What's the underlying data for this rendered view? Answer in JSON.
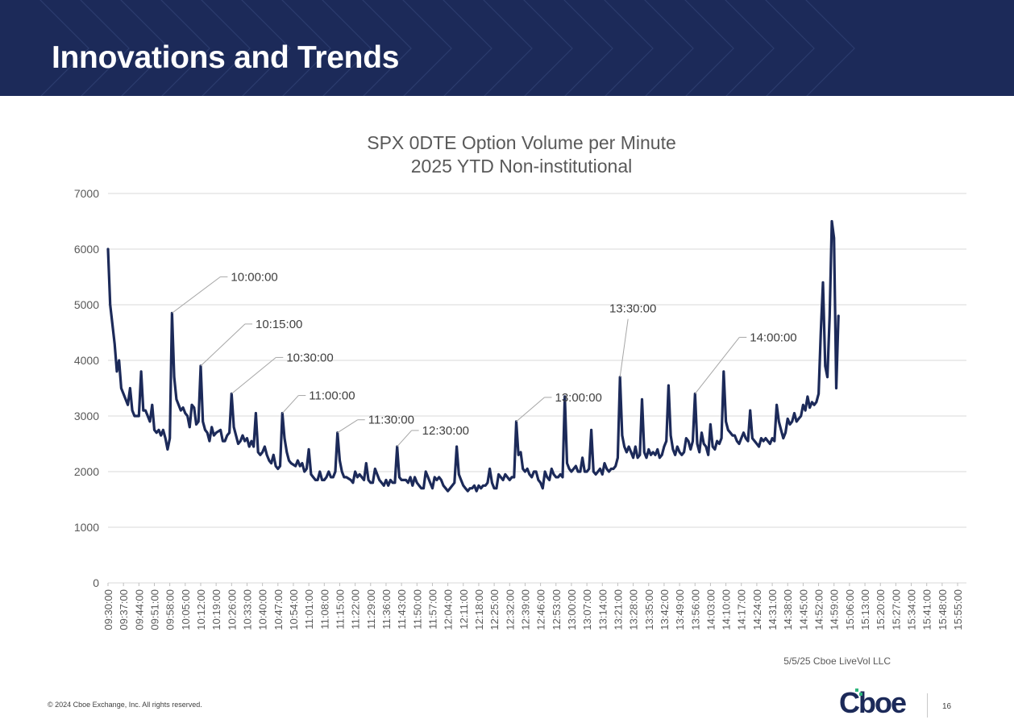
{
  "header": {
    "title": "Innovations and Trends"
  },
  "footer": {
    "source": "5/5/25 Cboe LiveVol LLC",
    "copyright": "© 2024 Cboe Exchange, Inc. All rights reserved.",
    "logo_text": "Cboe",
    "page_number": "16"
  },
  "colors": {
    "banner": "#1c2a59",
    "series": "#1c2a59",
    "grid": "#d9d9d9",
    "annotation_line": "#a6a6a6"
  },
  "chart_data": {
    "type": "line",
    "title": "SPX 0DTE Option Volume per Minute",
    "subtitle": "2025 YTD Non-institutional",
    "xlabel": "",
    "ylabel": "",
    "ylim": [
      0,
      7000
    ],
    "yticks": [
      0,
      1000,
      2000,
      3000,
      4000,
      5000,
      6000,
      7000
    ],
    "grid": true,
    "legend": "none",
    "x_start": "09:30:00",
    "x_end": "15:59:00",
    "x_step_minutes": 1,
    "tick_labels": [
      "09:30:00",
      "09:37:00",
      "09:44:00",
      "09:51:00",
      "09:58:00",
      "10:05:00",
      "10:12:00",
      "10:19:00",
      "10:26:00",
      "10:33:00",
      "10:40:00",
      "10:47:00",
      "10:54:00",
      "11:01:00",
      "11:08:00",
      "11:15:00",
      "11:22:00",
      "11:29:00",
      "11:36:00",
      "11:43:00",
      "11:50:00",
      "11:57:00",
      "12:04:00",
      "12:11:00",
      "12:18:00",
      "12:25:00",
      "12:32:00",
      "12:39:00",
      "12:46:00",
      "12:53:00",
      "13:00:00",
      "13:07:00",
      "13:14:00",
      "13:21:00",
      "13:28:00",
      "13:35:00",
      "13:42:00",
      "13:49:00",
      "13:56:00",
      "14:03:00",
      "14:10:00",
      "14:17:00",
      "14:24:00",
      "14:31:00",
      "14:38:00",
      "14:45:00",
      "14:52:00",
      "14:59:00",
      "15:06:00",
      "15:13:00",
      "15:20:00",
      "15:27:00",
      "15:34:00",
      "15:41:00",
      "15:48:00",
      "15:55:00"
    ],
    "anchors": [
      [
        "09:30",
        6000
      ],
      [
        "09:31",
        5000
      ],
      [
        "09:33",
        4300
      ],
      [
        "09:34",
        3800
      ],
      [
        "09:35",
        4000
      ],
      [
        "09:36",
        3500
      ],
      [
        "09:38",
        3300
      ],
      [
        "09:39",
        3200
      ],
      [
        "09:40",
        3500
      ],
      [
        "09:41",
        3100
      ],
      [
        "09:42",
        3000
      ],
      [
        "09:44",
        3000
      ],
      [
        "09:45",
        3800
      ],
      [
        "09:46",
        3100
      ],
      [
        "09:47",
        3100
      ],
      [
        "09:48",
        3000
      ],
      [
        "09:49",
        2900
      ],
      [
        "09:50",
        3200
      ],
      [
        "09:51",
        2750
      ],
      [
        "09:52",
        2700
      ],
      [
        "09:53",
        2750
      ],
      [
        "09:54",
        2650
      ],
      [
        "09:55",
        2750
      ],
      [
        "09:56",
        2600
      ],
      [
        "09:57",
        2400
      ],
      [
        "09:58",
        2600
      ],
      [
        "09:59",
        4850
      ],
      [
        "10:00",
        3700
      ],
      [
        "10:01",
        3300
      ],
      [
        "10:02",
        3200
      ],
      [
        "10:03",
        3100
      ],
      [
        "10:04",
        3150
      ],
      [
        "10:05",
        3050
      ],
      [
        "10:06",
        3000
      ],
      [
        "10:07",
        2800
      ],
      [
        "10:08",
        3200
      ],
      [
        "10:09",
        3150
      ],
      [
        "10:10",
        2850
      ],
      [
        "10:11",
        2900
      ],
      [
        "10:12",
        3900
      ],
      [
        "10:13",
        2900
      ],
      [
        "10:14",
        2750
      ],
      [
        "10:15",
        2700
      ],
      [
        "10:16",
        2550
      ],
      [
        "10:17",
        2800
      ],
      [
        "10:18",
        2650
      ],
      [
        "10:19",
        2700
      ],
      [
        "10:21",
        2750
      ],
      [
        "10:22",
        2550
      ],
      [
        "10:23",
        2550
      ],
      [
        "10:24",
        2650
      ],
      [
        "10:25",
        2700
      ],
      [
        "10:26",
        3400
      ],
      [
        "10:27",
        2800
      ],
      [
        "10:28",
        2650
      ],
      [
        "10:29",
        2500
      ],
      [
        "10:30",
        2550
      ],
      [
        "10:31",
        2650
      ],
      [
        "10:32",
        2550
      ],
      [
        "10:33",
        2600
      ],
      [
        "10:34",
        2450
      ],
      [
        "10:35",
        2550
      ],
      [
        "10:36",
        2450
      ],
      [
        "10:37",
        3050
      ],
      [
        "10:38",
        2350
      ],
      [
        "10:39",
        2300
      ],
      [
        "10:40",
        2350
      ],
      [
        "10:41",
        2450
      ],
      [
        "10:42",
        2300
      ],
      [
        "10:43",
        2200
      ],
      [
        "10:44",
        2150
      ],
      [
        "10:45",
        2300
      ],
      [
        "10:46",
        2100
      ],
      [
        "10:47",
        2050
      ],
      [
        "10:48",
        2100
      ],
      [
        "10:49",
        3050
      ],
      [
        "10:50",
        2600
      ],
      [
        "10:51",
        2350
      ],
      [
        "10:52",
        2200
      ],
      [
        "10:53",
        2150
      ],
      [
        "10:55",
        2100
      ],
      [
        "10:56",
        2200
      ],
      [
        "10:57",
        2100
      ],
      [
        "10:58",
        2150
      ],
      [
        "10:59",
        2000
      ],
      [
        "11:00",
        2050
      ],
      [
        "11:01",
        2400
      ],
      [
        "11:02",
        1950
      ],
      [
        "11:03",
        1900
      ],
      [
        "11:04",
        1850
      ],
      [
        "11:05",
        1850
      ],
      [
        "11:06",
        2000
      ],
      [
        "11:07",
        1850
      ],
      [
        "11:08",
        1850
      ],
      [
        "11:09",
        1900
      ],
      [
        "11:10",
        2000
      ],
      [
        "11:11",
        1900
      ],
      [
        "11:12",
        1900
      ],
      [
        "11:13",
        2000
      ],
      [
        "11:14",
        2700
      ],
      [
        "11:15",
        2200
      ],
      [
        "11:16",
        2000
      ],
      [
        "11:17",
        1900
      ],
      [
        "11:18",
        1900
      ],
      [
        "11:20",
        1850
      ],
      [
        "11:21",
        1800
      ],
      [
        "11:22",
        2000
      ],
      [
        "11:23",
        1900
      ],
      [
        "11:24",
        1950
      ],
      [
        "11:25",
        1900
      ],
      [
        "11:26",
        1850
      ],
      [
        "11:27",
        2150
      ],
      [
        "11:28",
        1850
      ],
      [
        "11:29",
        1800
      ],
      [
        "11:30",
        1800
      ],
      [
        "11:31",
        2050
      ],
      [
        "11:32",
        1950
      ],
      [
        "11:33",
        1850
      ],
      [
        "11:34",
        1800
      ],
      [
        "11:35",
        1750
      ],
      [
        "11:36",
        1850
      ],
      [
        "11:37",
        1750
      ],
      [
        "11:38",
        1850
      ],
      [
        "11:39",
        1800
      ],
      [
        "11:40",
        1800
      ],
      [
        "11:41",
        2450
      ],
      [
        "11:42",
        1900
      ],
      [
        "11:43",
        1850
      ],
      [
        "11:45",
        1850
      ],
      [
        "11:46",
        1800
      ],
      [
        "11:47",
        1900
      ],
      [
        "11:48",
        1750
      ],
      [
        "11:49",
        1900
      ],
      [
        "11:50",
        1800
      ],
      [
        "11:51",
        1750
      ],
      [
        "11:52",
        1700
      ],
      [
        "11:53",
        1700
      ],
      [
        "11:54",
        2000
      ],
      [
        "11:55",
        1900
      ],
      [
        "11:56",
        1800
      ],
      [
        "11:57",
        1700
      ],
      [
        "11:58",
        1900
      ],
      [
        "11:59",
        1850
      ],
      [
        "12:00",
        1900
      ],
      [
        "12:01",
        1850
      ],
      [
        "12:02",
        1750
      ],
      [
        "12:03",
        1700
      ],
      [
        "12:04",
        1650
      ],
      [
        "12:05",
        1700
      ],
      [
        "12:06",
        1750
      ],
      [
        "12:07",
        1800
      ],
      [
        "12:08",
        2450
      ],
      [
        "12:09",
        1950
      ],
      [
        "12:10",
        1850
      ],
      [
        "12:11",
        1750
      ],
      [
        "12:12",
        1700
      ],
      [
        "12:13",
        1650
      ],
      [
        "12:14",
        1700
      ],
      [
        "12:15",
        1700
      ],
      [
        "12:16",
        1750
      ],
      [
        "12:17",
        1650
      ],
      [
        "12:18",
        1750
      ],
      [
        "12:19",
        1700
      ],
      [
        "12:20",
        1750
      ],
      [
        "12:21",
        1750
      ],
      [
        "12:22",
        1800
      ],
      [
        "12:23",
        2050
      ],
      [
        "12:24",
        1800
      ],
      [
        "12:25",
        1700
      ],
      [
        "12:26",
        1700
      ],
      [
        "12:27",
        1950
      ],
      [
        "12:28",
        1900
      ],
      [
        "12:29",
        1850
      ],
      [
        "12:30",
        1950
      ],
      [
        "12:31",
        1900
      ],
      [
        "12:32",
        1850
      ],
      [
        "12:33",
        1900
      ],
      [
        "12:34",
        1900
      ],
      [
        "12:35",
        2900
      ],
      [
        "12:36",
        2300
      ],
      [
        "12:37",
        2350
      ],
      [
        "12:38",
        2050
      ],
      [
        "12:39",
        2000
      ],
      [
        "12:40",
        2050
      ],
      [
        "12:41",
        1950
      ],
      [
        "12:42",
        1900
      ],
      [
        "12:43",
        2000
      ],
      [
        "12:44",
        2000
      ],
      [
        "12:45",
        1850
      ],
      [
        "12:46",
        1800
      ],
      [
        "12:47",
        1700
      ],
      [
        "12:48",
        2000
      ],
      [
        "12:49",
        1900
      ],
      [
        "12:50",
        1850
      ],
      [
        "12:51",
        2050
      ],
      [
        "12:52",
        1950
      ],
      [
        "12:53",
        1900
      ],
      [
        "12:54",
        1900
      ],
      [
        "12:55",
        1950
      ],
      [
        "12:56",
        1900
      ],
      [
        "12:57",
        3350
      ],
      [
        "12:58",
        2150
      ],
      [
        "12:59",
        2050
      ],
      [
        "13:00",
        2000
      ],
      [
        "13:01",
        2050
      ],
      [
        "13:02",
        2100
      ],
      [
        "13:03",
        2000
      ],
      [
        "13:04",
        2000
      ],
      [
        "13:05",
        2250
      ],
      [
        "13:06",
        2000
      ],
      [
        "13:07",
        2000
      ],
      [
        "13:08",
        2050
      ],
      [
        "13:09",
        2750
      ],
      [
        "13:10",
        2000
      ],
      [
        "13:11",
        1950
      ],
      [
        "13:12",
        2000
      ],
      [
        "13:13",
        2050
      ],
      [
        "13:14",
        1950
      ],
      [
        "13:15",
        2150
      ],
      [
        "13:16",
        2050
      ],
      [
        "13:17",
        2000
      ],
      [
        "13:18",
        2050
      ],
      [
        "13:19",
        2050
      ],
      [
        "13:20",
        2100
      ],
      [
        "13:21",
        2250
      ],
      [
        "13:22",
        3700
      ],
      [
        "13:23",
        2650
      ],
      [
        "13:24",
        2450
      ],
      [
        "13:25",
        2350
      ],
      [
        "13:26",
        2450
      ],
      [
        "13:27",
        2350
      ],
      [
        "13:28",
        2250
      ],
      [
        "13:29",
        2450
      ],
      [
        "13:30",
        2250
      ],
      [
        "13:31",
        2300
      ],
      [
        "13:32",
        3300
      ],
      [
        "13:33",
        2350
      ],
      [
        "13:34",
        2250
      ],
      [
        "13:35",
        2400
      ],
      [
        "13:36",
        2300
      ],
      [
        "13:37",
        2350
      ],
      [
        "13:38",
        2300
      ],
      [
        "13:39",
        2400
      ],
      [
        "13:40",
        2250
      ],
      [
        "13:41",
        2300
      ],
      [
        "13:42",
        2450
      ],
      [
        "13:43",
        2550
      ],
      [
        "13:44",
        3550
      ],
      [
        "13:45",
        2650
      ],
      [
        "13:46",
        2400
      ],
      [
        "13:47",
        2300
      ],
      [
        "13:48",
        2450
      ],
      [
        "13:49",
        2350
      ],
      [
        "13:50",
        2300
      ],
      [
        "13:51",
        2350
      ],
      [
        "13:52",
        2600
      ],
      [
        "13:53",
        2550
      ],
      [
        "13:54",
        2400
      ],
      [
        "13:55",
        2550
      ],
      [
        "13:56",
        3400
      ],
      [
        "13:57",
        2500
      ],
      [
        "13:58",
        2350
      ],
      [
        "13:59",
        2700
      ],
      [
        "14:00",
        2500
      ],
      [
        "14:01",
        2450
      ],
      [
        "14:02",
        2300
      ],
      [
        "14:03",
        2850
      ],
      [
        "14:04",
        2450
      ],
      [
        "14:05",
        2400
      ],
      [
        "14:06",
        2550
      ],
      [
        "14:07",
        2500
      ],
      [
        "14:08",
        2600
      ],
      [
        "14:09",
        3800
      ],
      [
        "14:10",
        2900
      ],
      [
        "14:11",
        2750
      ],
      [
        "14:12",
        2700
      ],
      [
        "14:13",
        2650
      ],
      [
        "14:14",
        2650
      ],
      [
        "14:15",
        2550
      ],
      [
        "14:16",
        2500
      ],
      [
        "14:17",
        2600
      ],
      [
        "14:18",
        2700
      ],
      [
        "14:19",
        2600
      ],
      [
        "14:20",
        2550
      ],
      [
        "14:21",
        3100
      ],
      [
        "14:22",
        2600
      ],
      [
        "14:23",
        2550
      ],
      [
        "14:24",
        2500
      ],
      [
        "14:25",
        2450
      ],
      [
        "14:26",
        2600
      ],
      [
        "14:27",
        2550
      ],
      [
        "14:28",
        2600
      ],
      [
        "14:29",
        2550
      ],
      [
        "14:30",
        2500
      ],
      [
        "14:31",
        2600
      ],
      [
        "14:32",
        2550
      ],
      [
        "14:33",
        3200
      ],
      [
        "14:34",
        2900
      ],
      [
        "14:35",
        2750
      ],
      [
        "14:36",
        2600
      ],
      [
        "14:37",
        2700
      ],
      [
        "14:38",
        2950
      ],
      [
        "14:39",
        2850
      ],
      [
        "14:40",
        2900
      ],
      [
        "14:41",
        3050
      ],
      [
        "14:42",
        2900
      ],
      [
        "14:43",
        2950
      ],
      [
        "14:44",
        3000
      ],
      [
        "14:45",
        3200
      ],
      [
        "14:46",
        3100
      ],
      [
        "14:47",
        3350
      ],
      [
        "14:48",
        3150
      ],
      [
        "14:49",
        3250
      ],
      [
        "14:50",
        3200
      ],
      [
        "14:51",
        3250
      ],
      [
        "14:52",
        3400
      ],
      [
        "14:53",
        4500
      ],
      [
        "14:54",
        5400
      ],
      [
        "14:55",
        3900
      ],
      [
        "14:56",
        3700
      ],
      [
        "14:57",
        4800
      ],
      [
        "14:58",
        6500
      ],
      [
        "14:59",
        6200
      ],
      [
        "15:00",
        3500
      ],
      [
        "15:01",
        4800
      ]
    ],
    "annotations": [
      {
        "label": "10:00:00",
        "x": "09:59",
        "y": 4850
      },
      {
        "label": "10:15:00",
        "x": "10:12",
        "y": 3900
      },
      {
        "label": "10:30:00",
        "x": "10:26",
        "y": 3400
      },
      {
        "label": "11:00:00",
        "x": "10:49",
        "y": 3050
      },
      {
        "label": "11:30:00",
        "x": "11:14",
        "y": 2700
      },
      {
        "label": "12:30:00",
        "x": "11:41",
        "y": 2450
      },
      {
        "label": "13:00:00",
        "x": "12:35",
        "y": 2900
      },
      {
        "label": "13:30:00",
        "x": "13:22",
        "y": 3700
      },
      {
        "label": "14:00:00",
        "x": "13:56",
        "y": 3400
      }
    ]
  }
}
